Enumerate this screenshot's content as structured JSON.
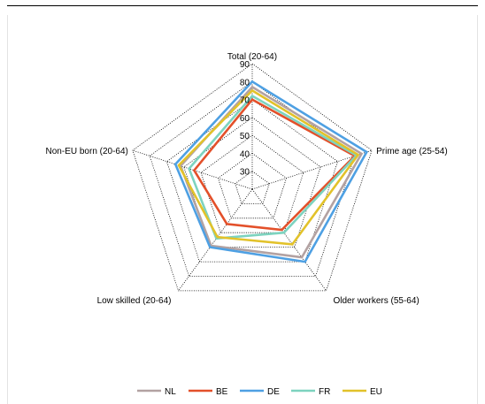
{
  "chart_data": {
    "type": "radar",
    "axes": [
      "Total (20-64)",
      "Prime age (25-54)",
      "Older workers (55-64)",
      "Low skilled (20-64)",
      "Non-EU born (20-64)"
    ],
    "rlim": [
      20,
      90
    ],
    "ticks": [
      30,
      40,
      50,
      60,
      70,
      80,
      90
    ],
    "grid": true,
    "legend": "bottom",
    "series": [
      {
        "name": "NL",
        "color": "#b3a2a2",
        "values": [
          77,
          84,
          67,
          59,
          62
        ]
      },
      {
        "name": "BE",
        "color": "#e3502a",
        "values": [
          70,
          80,
          48,
          44,
          54
        ]
      },
      {
        "name": "DE",
        "color": "#4ea0e3",
        "values": [
          80,
          87,
          70,
          60,
          65
        ]
      },
      {
        "name": "FR",
        "color": "#7dd3bf",
        "values": [
          72,
          81,
          50,
          54,
          57
        ]
      },
      {
        "name": "EU",
        "color": "#e2c22a",
        "values": [
          75,
          82,
          58,
          53,
          63
        ]
      }
    ]
  }
}
